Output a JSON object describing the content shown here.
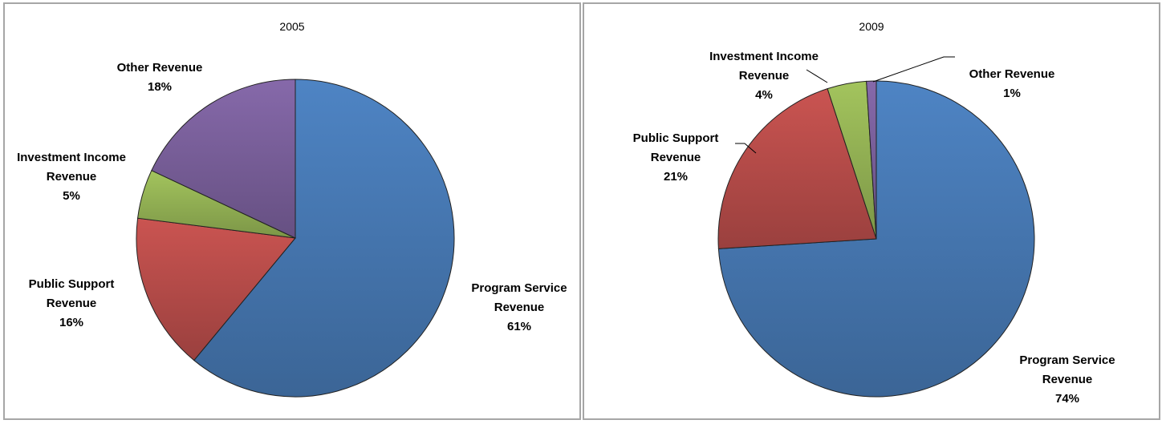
{
  "chart_data": [
    {
      "type": "pie",
      "title": "2005",
      "categories": [
        "Program Service Revenue",
        "Public Support Revenue",
        "Investment Income Revenue",
        "Other Revenue"
      ],
      "values": [
        61,
        16,
        5,
        18
      ],
      "value_labels": [
        "61%",
        "16%",
        "5%",
        "18%"
      ],
      "colors": [
        "#4a7ebb",
        "#c0504d",
        "#9bbb59",
        "#8064a2"
      ]
    },
    {
      "type": "pie",
      "title": "2009",
      "categories": [
        "Program Service Revenue",
        "Public Support Revenue",
        "Investment Income Revenue",
        "Other Revenue"
      ],
      "values": [
        74,
        21,
        4,
        1
      ],
      "value_labels": [
        "74%",
        "21%",
        "4%",
        "1%"
      ],
      "colors": [
        "#4a7ebb",
        "#c0504d",
        "#9bbb59",
        "#8064a2"
      ]
    }
  ]
}
